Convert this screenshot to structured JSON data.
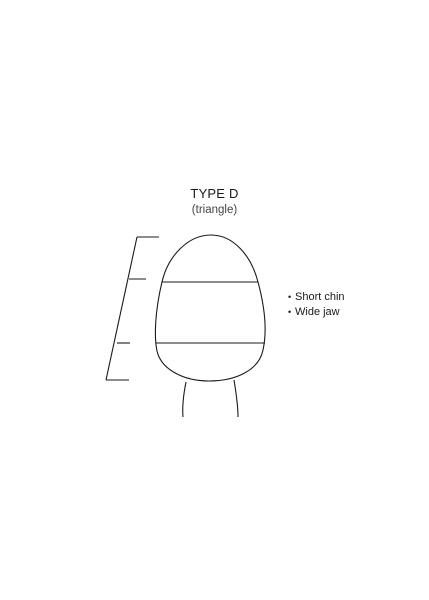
{
  "heading": {
    "title": "TYPE D",
    "subtitle": "(triangle)"
  },
  "features": [
    {
      "bullet": "•",
      "text": "Short chin"
    },
    {
      "bullet": "•",
      "text": "Wide jaw"
    }
  ],
  "colors": {
    "line": "#1a1a1a",
    "background": "#ffffff"
  }
}
